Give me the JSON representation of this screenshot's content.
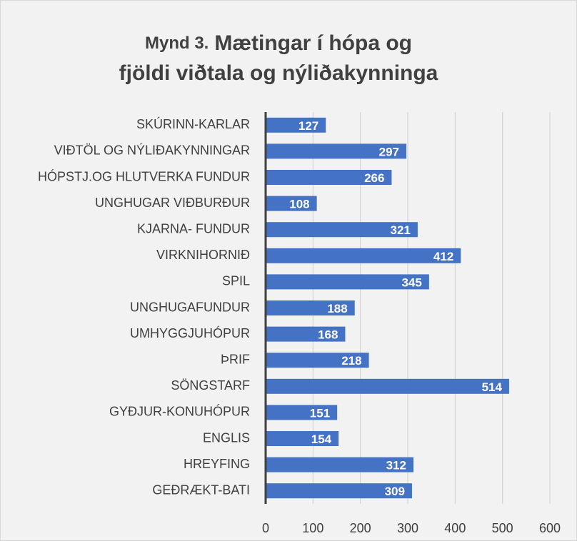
{
  "chart_data": {
    "type": "bar",
    "orientation": "horizontal",
    "title": [
      "Mynd 3.",
      "Mætingar í hópa og",
      "fjöldi viðtala og nýliðakynninga"
    ],
    "categories": [
      "SKÚRINN-KARLAR",
      "VIÐTÖL OG NÝLIÐAKYNNINGAR",
      "HÓPSTJ.OG HLUTVERKA FUNDUR",
      "UNGHUGAR VIÐBURÐUR",
      "KJARNA- FUNDUR",
      "VIRKNIHORNIÐ",
      "SPIL",
      "UNGHUGAFUNDUR",
      "UMHYGGJUHÓPUR",
      "ÞRIF",
      "SÖNGSTARF",
      "GYÐJUR-KONUHÓPUR",
      "ENGLIS",
      "HREYFING",
      "GEÐRÆKT-BATI"
    ],
    "values": [
      127,
      297,
      266,
      108,
      321,
      412,
      345,
      188,
      168,
      218,
      514,
      151,
      154,
      312,
      309
    ],
    "color": "#4472c4",
    "xlim": [
      0,
      600
    ],
    "xticks": [
      0,
      100,
      200,
      300,
      400,
      500,
      600
    ],
    "grid": true
  }
}
